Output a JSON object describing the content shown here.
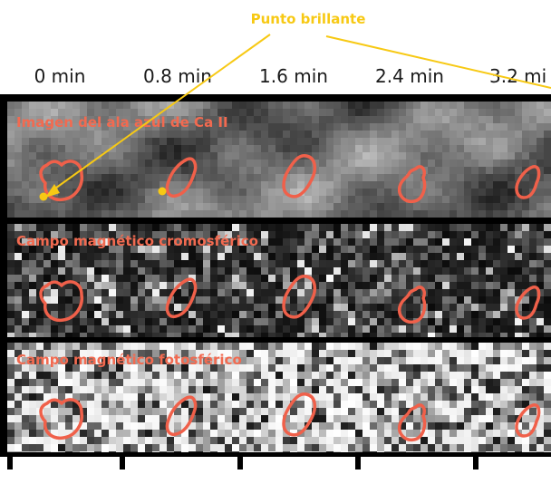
{
  "annotation": {
    "label": "Punto brillante",
    "color": "#f7c914"
  },
  "time_labels": [
    "0 min",
    "0.8 min",
    "1.6 min",
    "2.4 min",
    "3.2 mi"
  ],
  "rows": [
    {
      "label": "Imagen del ala azul de Ca II",
      "style": "smooth-gray"
    },
    {
      "label": "Campo magnético cromosférico",
      "style": "noisy-dark"
    },
    {
      "label": "Campo magnético fotosférico",
      "style": "noisy-light"
    }
  ],
  "colors": {
    "contour": "#f0604a",
    "row_label": "#f26a50",
    "frame": "#000000",
    "highlight": "#f7c914"
  }
}
